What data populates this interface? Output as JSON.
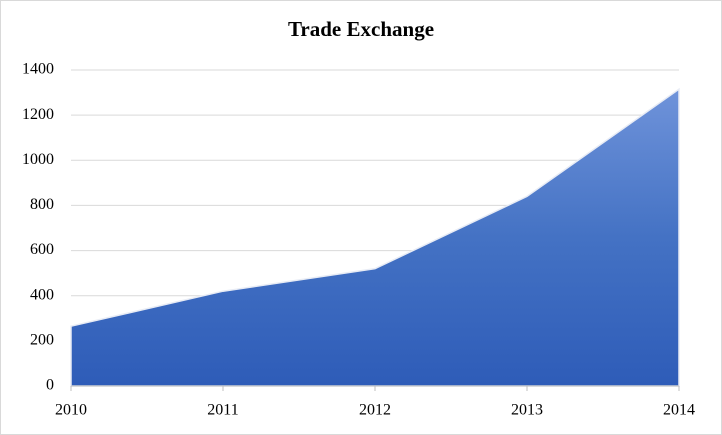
{
  "chart_data": {
    "type": "area",
    "title": "Trade Exchange",
    "x": [
      2010,
      2011,
      2012,
      2013,
      2014
    ],
    "values": [
      265,
      420,
      520,
      840,
      1315
    ],
    "color": "#4472c4",
    "xlim": [
      2010,
      2014
    ],
    "xticks": [
      2010,
      2011,
      2012,
      2013,
      2014
    ],
    "ylim": [
      0,
      1400
    ],
    "yticks": [
      0,
      200,
      400,
      600,
      800,
      1000,
      1200,
      1400
    ],
    "grid": true
  }
}
